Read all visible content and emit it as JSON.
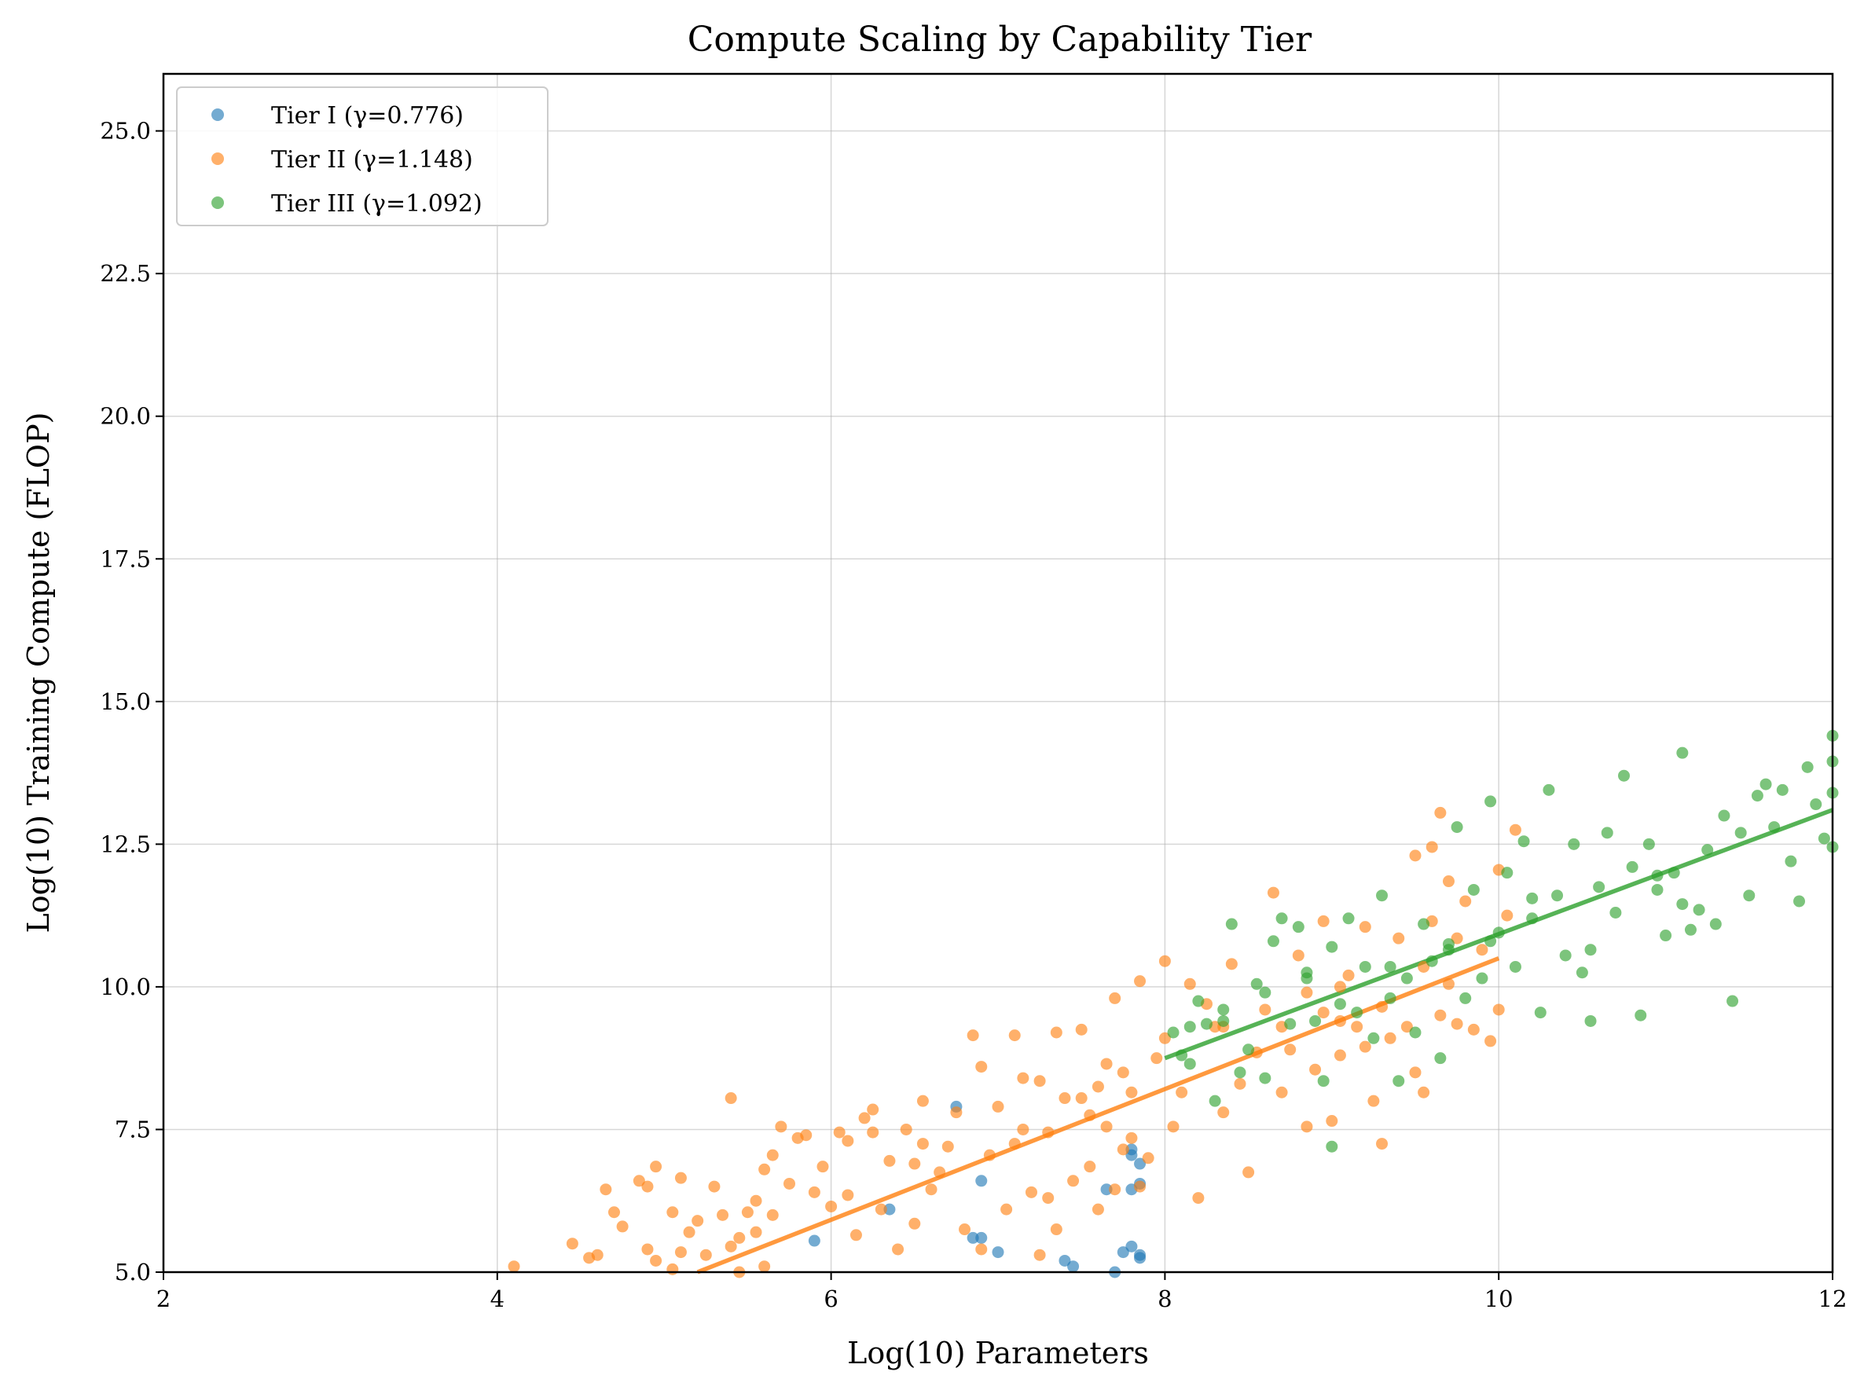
{
  "chart_data": {
    "type": "scatter",
    "title": "Compute Scaling by Capability Tier",
    "xlabel": "Log(10) Parameters",
    "ylabel": "Log(10) Training Compute (FLOP)",
    "xlim": [
      2,
      12
    ],
    "ylim": [
      5.0,
      26.0
    ],
    "xticks": [
      2,
      4,
      6,
      8,
      10,
      12
    ],
    "xtick_labels": [
      "2",
      "4",
      "6",
      "8",
      "10",
      "12"
    ],
    "yticks": [
      5.0,
      7.5,
      10.0,
      12.5,
      15.0,
      17.5,
      20.0,
      22.5,
      25.0
    ],
    "ytick_labels": [
      "5.0",
      "7.5",
      "10.0",
      "12.5",
      "15.0",
      "17.5",
      "20.0",
      "22.5",
      "25.0"
    ],
    "grid": true,
    "legend_position": "top-left",
    "series": [
      {
        "name": "Tier I (γ=0.776)",
        "color": "#1f77b4",
        "points": [
          [
            5.9,
            5.55
          ],
          [
            6.35,
            6.1
          ],
          [
            6.75,
            7.9
          ],
          [
            6.85,
            5.6
          ],
          [
            6.9,
            5.6
          ],
          [
            6.9,
            6.6
          ],
          [
            7.0,
            5.35
          ],
          [
            7.4,
            5.2
          ],
          [
            7.45,
            5.1
          ],
          [
            7.65,
            6.45
          ],
          [
            7.7,
            5.0
          ],
          [
            7.75,
            5.35
          ],
          [
            7.8,
            5.45
          ],
          [
            7.8,
            7.15
          ],
          [
            7.8,
            6.45
          ],
          [
            7.85,
            5.3
          ],
          [
            7.85,
            5.25
          ],
          [
            7.85,
            6.9
          ],
          [
            7.85,
            6.55
          ],
          [
            7.8,
            7.05
          ]
        ]
      },
      {
        "name": "Tier II (γ=1.148)",
        "color": "#ff7f0e",
        "fit": [
          [
            5.2,
            5.0
          ],
          [
            10.0,
            10.5
          ]
        ],
        "points": [
          [
            4.1,
            5.1
          ],
          [
            4.45,
            5.5
          ],
          [
            4.55,
            5.25
          ],
          [
            4.6,
            5.3
          ],
          [
            4.65,
            6.45
          ],
          [
            4.7,
            6.05
          ],
          [
            4.75,
            5.8
          ],
          [
            4.85,
            6.6
          ],
          [
            4.9,
            5.4
          ],
          [
            4.9,
            6.5
          ],
          [
            4.95,
            6.85
          ],
          [
            4.95,
            5.2
          ],
          [
            5.05,
            6.05
          ],
          [
            5.05,
            5.05
          ],
          [
            5.1,
            6.65
          ],
          [
            5.1,
            5.35
          ],
          [
            5.15,
            5.7
          ],
          [
            5.2,
            5.9
          ],
          [
            5.25,
            5.3
          ],
          [
            5.3,
            6.5
          ],
          [
            5.35,
            6.0
          ],
          [
            5.4,
            5.45
          ],
          [
            5.4,
            8.05
          ],
          [
            5.45,
            5.6
          ],
          [
            5.45,
            5.0
          ],
          [
            5.5,
            6.05
          ],
          [
            5.55,
            5.7
          ],
          [
            5.6,
            5.1
          ],
          [
            5.6,
            6.8
          ],
          [
            5.65,
            7.05
          ],
          [
            5.65,
            6.0
          ],
          [
            5.7,
            7.55
          ],
          [
            5.75,
            6.55
          ],
          [
            5.8,
            7.35
          ],
          [
            5.85,
            7.4
          ],
          [
            5.9,
            6.4
          ],
          [
            5.95,
            6.85
          ],
          [
            6.0,
            6.15
          ],
          [
            6.05,
            7.45
          ],
          [
            6.1,
            7.3
          ],
          [
            6.1,
            6.35
          ],
          [
            6.15,
            5.65
          ],
          [
            6.2,
            7.7
          ],
          [
            6.25,
            7.85
          ],
          [
            6.3,
            6.1
          ],
          [
            6.35,
            6.95
          ],
          [
            6.4,
            5.4
          ],
          [
            6.45,
            7.5
          ],
          [
            6.5,
            6.9
          ],
          [
            6.5,
            5.85
          ],
          [
            6.55,
            7.25
          ],
          [
            6.55,
            8.0
          ],
          [
            6.6,
            6.45
          ],
          [
            6.65,
            6.75
          ],
          [
            6.7,
            7.2
          ],
          [
            6.75,
            7.8
          ],
          [
            6.8,
            5.75
          ],
          [
            6.85,
            9.15
          ],
          [
            6.9,
            5.4
          ],
          [
            6.9,
            8.6
          ],
          [
            6.95,
            7.05
          ],
          [
            7.0,
            7.9
          ],
          [
            7.05,
            6.1
          ],
          [
            7.1,
            7.25
          ],
          [
            7.1,
            9.15
          ],
          [
            7.15,
            7.5
          ],
          [
            7.2,
            6.4
          ],
          [
            7.25,
            5.3
          ],
          [
            7.25,
            8.35
          ],
          [
            7.3,
            6.3
          ],
          [
            7.3,
            7.45
          ],
          [
            7.35,
            5.75
          ],
          [
            7.35,
            9.2
          ],
          [
            7.4,
            8.05
          ],
          [
            7.45,
            6.6
          ],
          [
            7.5,
            8.05
          ],
          [
            7.5,
            9.25
          ],
          [
            7.55,
            7.75
          ],
          [
            7.55,
            6.85
          ],
          [
            7.6,
            8.25
          ],
          [
            7.6,
            6.1
          ],
          [
            7.65,
            7.55
          ],
          [
            7.65,
            8.65
          ],
          [
            7.7,
            9.8
          ],
          [
            7.7,
            6.45
          ],
          [
            7.75,
            7.15
          ],
          [
            7.75,
            8.5
          ],
          [
            7.8,
            8.15
          ],
          [
            7.8,
            7.35
          ],
          [
            7.85,
            6.5
          ],
          [
            7.85,
            10.1
          ],
          [
            7.9,
            7.0
          ],
          [
            7.95,
            8.75
          ],
          [
            8.0,
            9.1
          ],
          [
            8.0,
            10.45
          ],
          [
            8.05,
            7.55
          ],
          [
            8.1,
            8.15
          ],
          [
            8.15,
            10.05
          ],
          [
            8.2,
            6.3
          ],
          [
            8.25,
            9.7
          ],
          [
            8.3,
            9.3
          ],
          [
            8.35,
            7.8
          ],
          [
            8.4,
            10.4
          ],
          [
            8.45,
            8.3
          ],
          [
            8.5,
            6.75
          ],
          [
            8.55,
            8.85
          ],
          [
            8.6,
            9.6
          ],
          [
            8.65,
            11.65
          ],
          [
            8.7,
            8.15
          ],
          [
            8.7,
            9.3
          ],
          [
            8.75,
            8.9
          ],
          [
            8.8,
            10.55
          ],
          [
            8.85,
            7.55
          ],
          [
            8.9,
            8.55
          ],
          [
            8.95,
            9.55
          ],
          [
            8.95,
            11.15
          ],
          [
            9.0,
            7.65
          ],
          [
            9.05,
            9.4
          ],
          [
            9.05,
            8.8
          ],
          [
            9.1,
            10.2
          ],
          [
            9.15,
            9.3
          ],
          [
            9.2,
            8.95
          ],
          [
            9.2,
            11.05
          ],
          [
            9.25,
            8.0
          ],
          [
            9.3,
            9.65
          ],
          [
            9.3,
            7.25
          ],
          [
            9.35,
            9.1
          ],
          [
            9.4,
            10.85
          ],
          [
            9.45,
            9.3
          ],
          [
            9.5,
            8.5
          ],
          [
            9.5,
            12.3
          ],
          [
            9.55,
            8.15
          ],
          [
            9.55,
            10.35
          ],
          [
            9.6,
            12.45
          ],
          [
            9.6,
            11.15
          ],
          [
            9.65,
            9.5
          ],
          [
            9.65,
            13.05
          ],
          [
            9.7,
            10.05
          ],
          [
            9.7,
            11.85
          ],
          [
            9.75,
            9.35
          ],
          [
            9.75,
            10.85
          ],
          [
            9.8,
            11.5
          ],
          [
            9.85,
            9.25
          ],
          [
            9.9,
            10.65
          ],
          [
            9.95,
            9.05
          ],
          [
            10.0,
            12.05
          ],
          [
            10.0,
            9.6
          ],
          [
            10.05,
            11.25
          ],
          [
            10.1,
            12.75
          ],
          [
            9.05,
            10.0
          ],
          [
            8.35,
            9.3
          ],
          [
            7.15,
            8.4
          ],
          [
            6.25,
            7.45
          ],
          [
            5.55,
            6.25
          ],
          [
            8.85,
            9.9
          ]
        ]
      },
      {
        "name": "Tier III (γ=1.092)",
        "color": "#2ca02c",
        "fit": [
          [
            8.0,
            8.75
          ],
          [
            12.0,
            13.1
          ]
        ],
        "points": [
          [
            8.05,
            9.2
          ],
          [
            8.1,
            8.8
          ],
          [
            8.15,
            8.65
          ],
          [
            8.2,
            9.75
          ],
          [
            8.25,
            9.35
          ],
          [
            8.3,
            8.0
          ],
          [
            8.35,
            9.6
          ],
          [
            8.4,
            11.1
          ],
          [
            8.45,
            8.5
          ],
          [
            8.5,
            8.9
          ],
          [
            8.55,
            10.05
          ],
          [
            8.6,
            9.9
          ],
          [
            8.65,
            10.8
          ],
          [
            8.7,
            11.2
          ],
          [
            8.75,
            9.35
          ],
          [
            8.8,
            11.05
          ],
          [
            8.85,
            10.15
          ],
          [
            8.9,
            9.4
          ],
          [
            8.95,
            8.35
          ],
          [
            9.0,
            7.2
          ],
          [
            9.0,
            10.7
          ],
          [
            9.05,
            9.7
          ],
          [
            9.1,
            11.2
          ],
          [
            9.15,
            9.55
          ],
          [
            9.2,
            10.35
          ],
          [
            9.25,
            9.1
          ],
          [
            9.3,
            11.6
          ],
          [
            9.35,
            9.8
          ],
          [
            9.4,
            8.35
          ],
          [
            9.45,
            10.15
          ],
          [
            9.5,
            9.2
          ],
          [
            9.55,
            11.1
          ],
          [
            9.6,
            10.45
          ],
          [
            9.65,
            8.75
          ],
          [
            9.7,
            10.65
          ],
          [
            9.75,
            12.8
          ],
          [
            9.8,
            9.8
          ],
          [
            9.85,
            11.7
          ],
          [
            9.9,
            10.15
          ],
          [
            9.95,
            13.25
          ],
          [
            10.0,
            10.95
          ],
          [
            10.05,
            12.0
          ],
          [
            10.1,
            10.35
          ],
          [
            10.15,
            12.55
          ],
          [
            10.2,
            11.2
          ],
          [
            10.25,
            9.55
          ],
          [
            10.3,
            13.45
          ],
          [
            10.35,
            11.6
          ],
          [
            10.4,
            10.55
          ],
          [
            10.45,
            12.5
          ],
          [
            10.5,
            10.25
          ],
          [
            10.55,
            9.4
          ],
          [
            10.6,
            11.75
          ],
          [
            10.65,
            12.7
          ],
          [
            10.7,
            11.3
          ],
          [
            10.75,
            13.7
          ],
          [
            10.8,
            12.1
          ],
          [
            10.85,
            9.5
          ],
          [
            10.9,
            12.5
          ],
          [
            10.95,
            11.95
          ],
          [
            11.0,
            10.9
          ],
          [
            11.05,
            12.0
          ],
          [
            11.1,
            14.1
          ],
          [
            11.15,
            11.0
          ],
          [
            11.2,
            11.35
          ],
          [
            11.25,
            12.4
          ],
          [
            11.3,
            11.1
          ],
          [
            11.35,
            13.0
          ],
          [
            11.4,
            9.75
          ],
          [
            11.45,
            12.7
          ],
          [
            11.5,
            11.6
          ],
          [
            11.55,
            13.35
          ],
          [
            11.6,
            13.55
          ],
          [
            11.65,
            12.8
          ],
          [
            11.7,
            13.45
          ],
          [
            11.75,
            12.2
          ],
          [
            11.8,
            11.5
          ],
          [
            11.85,
            13.85
          ],
          [
            11.9,
            13.2
          ],
          [
            11.95,
            12.6
          ],
          [
            12.0,
            13.4
          ],
          [
            12.0,
            14.4
          ],
          [
            12.0,
            12.45
          ],
          [
            12.0,
            13.95
          ],
          [
            8.35,
            9.4
          ],
          [
            8.6,
            8.4
          ],
          [
            9.7,
            10.75
          ],
          [
            10.2,
            11.55
          ],
          [
            10.95,
            11.7
          ],
          [
            9.35,
            10.35
          ],
          [
            8.15,
            9.3
          ],
          [
            8.85,
            10.25
          ],
          [
            10.55,
            10.65
          ],
          [
            11.1,
            11.45
          ],
          [
            9.95,
            10.8
          ]
        ]
      }
    ]
  }
}
